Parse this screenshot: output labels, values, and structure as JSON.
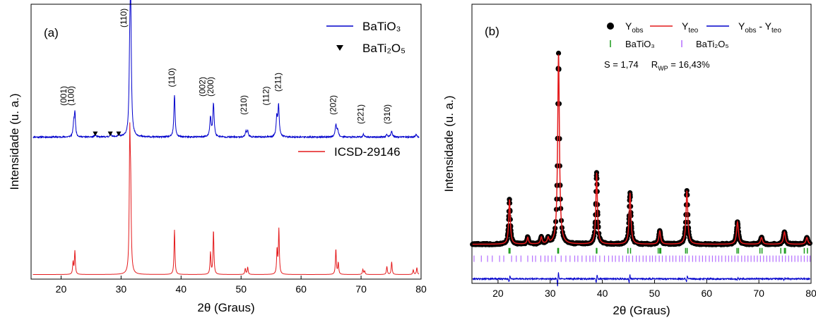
{
  "chart_data": [
    {
      "type": "line",
      "panel_label": "(a)",
      "xlabel": "2θ (Graus)",
      "ylabel": "Intensidade (u. a.)",
      "xlim": [
        15,
        80
      ],
      "xticks": [
        20,
        30,
        40,
        50,
        60,
        70,
        80
      ],
      "ylim": [
        0,
        1.2
      ],
      "yticks_shown": false,
      "grid": false,
      "legend_entries": [
        {
          "label": "BaTiO₃",
          "kind": "line",
          "color": "#0000cc"
        },
        {
          "label": "BaTi₂O₅",
          "kind": "marker",
          "marker": "down-triangle",
          "color": "#000000"
        },
        {
          "label": "ICSD-29146",
          "kind": "line",
          "color": "#e41a1c"
        }
      ],
      "series": [
        {
          "name": "BaTiO₃",
          "color": "#0000cc",
          "baseline": 0.62,
          "noise": 0.006,
          "peaks": [
            {
              "x": 22.1,
              "h": 0.052,
              "w": 0.12
            },
            {
              "x": 22.3,
              "h": 0.102,
              "w": 0.12
            },
            {
              "x": 25.7,
              "h": 0.01,
              "w": 0.15
            },
            {
              "x": 28.3,
              "h": 0.012,
              "w": 0.15
            },
            {
              "x": 29.6,
              "h": 0.008,
              "w": 0.15
            },
            {
              "x": 31.45,
              "h": 0.28,
              "w": 0.13
            },
            {
              "x": 31.6,
              "h": 0.52,
              "w": 0.13
            },
            {
              "x": 38.9,
              "h": 0.184,
              "w": 0.12
            },
            {
              "x": 44.9,
              "h": 0.085,
              "w": 0.13
            },
            {
              "x": 45.4,
              "h": 0.145,
              "w": 0.13
            },
            {
              "x": 50.8,
              "h": 0.024,
              "w": 0.13
            },
            {
              "x": 51.1,
              "h": 0.026,
              "w": 0.13
            },
            {
              "x": 55.95,
              "h": 0.082,
              "w": 0.13
            },
            {
              "x": 56.25,
              "h": 0.135,
              "w": 0.13
            },
            {
              "x": 65.8,
              "h": 0.052,
              "w": 0.14
            },
            {
              "x": 66.1,
              "h": 0.03,
              "w": 0.14
            },
            {
              "x": 70.4,
              "h": 0.012,
              "w": 0.14
            },
            {
              "x": 74.3,
              "h": 0.01,
              "w": 0.14
            },
            {
              "x": 75.1,
              "h": 0.025,
              "w": 0.14
            },
            {
              "x": 79.2,
              "h": 0.012,
              "w": 0.14
            }
          ]
        },
        {
          "name": "ICSD-29146",
          "color": "#e41a1c",
          "baseline": 0.02,
          "noise": 0.0,
          "peaks": [
            {
              "x": 22.0,
              "h": 0.052,
              "w": 0.09
            },
            {
              "x": 22.3,
              "h": 0.102,
              "w": 0.09
            },
            {
              "x": 31.45,
              "h": 0.565,
              "w": 0.1
            },
            {
              "x": 31.6,
              "h": 0.31,
              "w": 0.1
            },
            {
              "x": 38.9,
              "h": 0.195,
              "w": 0.09
            },
            {
              "x": 44.9,
              "h": 0.095,
              "w": 0.09
            },
            {
              "x": 45.4,
              "h": 0.192,
              "w": 0.09
            },
            {
              "x": 50.7,
              "h": 0.026,
              "w": 0.09
            },
            {
              "x": 51.1,
              "h": 0.032,
              "w": 0.09
            },
            {
              "x": 56.0,
              "h": 0.106,
              "w": 0.09
            },
            {
              "x": 56.3,
              "h": 0.196,
              "w": 0.09
            },
            {
              "x": 65.8,
              "h": 0.11,
              "w": 0.09
            },
            {
              "x": 66.2,
              "h": 0.05,
              "w": 0.09
            },
            {
              "x": 70.3,
              "h": 0.022,
              "w": 0.09
            },
            {
              "x": 70.6,
              "h": 0.015,
              "w": 0.09
            },
            {
              "x": 74.3,
              "h": 0.035,
              "w": 0.09
            },
            {
              "x": 75.1,
              "h": 0.055,
              "w": 0.09
            },
            {
              "x": 78.7,
              "h": 0.02,
              "w": 0.09
            },
            {
              "x": 79.3,
              "h": 0.03,
              "w": 0.09
            }
          ]
        }
      ],
      "impurity_markers": {
        "name": "BaTi₂O₅",
        "x": [
          25.7,
          28.2,
          29.6
        ],
        "y": 0.635
      },
      "peak_annotations": [
        {
          "label": "(001)",
          "x": 20.9,
          "y": 0.8
        },
        {
          "label": "(100)",
          "x": 22.1,
          "y": 0.8
        },
        {
          "label": "(110)",
          "x": 30.9,
          "y": 1.14
        },
        {
          "label": "(110)",
          "x": 38.9,
          "y": 0.88
        },
        {
          "label": "(002)",
          "x": 44.0,
          "y": 0.84
        },
        {
          "label": "(200)",
          "x": 45.4,
          "y": 0.84
        },
        {
          "label": "(210)",
          "x": 50.9,
          "y": 0.76
        },
        {
          "label": "(112)",
          "x": 54.6,
          "y": 0.8
        },
        {
          "label": "(211)",
          "x": 56.6,
          "y": 0.86
        },
        {
          "label": "(202)",
          "x": 65.8,
          "y": 0.76
        },
        {
          "label": "(221)",
          "x": 70.4,
          "y": 0.72
        },
        {
          "label": "(310)",
          "x": 74.8,
          "y": 0.72
        }
      ]
    },
    {
      "type": "line",
      "panel_label": "(b)",
      "xlabel": "2θ (Graus)",
      "ylabel": "Intensidade (u. a.)",
      "xlim": [
        15,
        80
      ],
      "xticks": [
        20,
        30,
        40,
        50,
        60,
        70,
        80
      ],
      "ylim": [
        -0.1,
        1.15
      ],
      "yticks_shown": false,
      "grid": false,
      "annotation": "S = 1,74     R_WP = 16,43%",
      "legend_entries": [
        {
          "label": "Yobs",
          "kind": "marker",
          "marker": "circle",
          "color": "#000000"
        },
        {
          "label": "Yteo",
          "kind": "line",
          "color": "#e41a1c"
        },
        {
          "label": "Yobs - Yteo",
          "kind": "line",
          "color": "#0000cc"
        },
        {
          "label": "BaTiO₃",
          "kind": "tick",
          "color": "#1a9a1a"
        },
        {
          "label": "BaTi₂O₅",
          "kind": "tick",
          "color": "#b46eff"
        }
      ],
      "series": [
        {
          "name": "Yobs",
          "color": "#000000",
          "baseline": 0.075,
          "peaks": [
            {
              "x": 22.2,
              "h": 0.2,
              "w": 0.18
            },
            {
              "x": 25.7,
              "h": 0.03,
              "w": 0.18
            },
            {
              "x": 28.3,
              "h": 0.03,
              "w": 0.18
            },
            {
              "x": 29.6,
              "h": 0.025,
              "w": 0.18
            },
            {
              "x": 31.6,
              "h": 0.855,
              "w": 0.2
            },
            {
              "x": 38.9,
              "h": 0.32,
              "w": 0.18
            },
            {
              "x": 45.3,
              "h": 0.23,
              "w": 0.2
            },
            {
              "x": 51.0,
              "h": 0.06,
              "w": 0.2
            },
            {
              "x": 56.2,
              "h": 0.24,
              "w": 0.2
            },
            {
              "x": 65.9,
              "h": 0.1,
              "w": 0.22
            },
            {
              "x": 70.5,
              "h": 0.03,
              "w": 0.22
            },
            {
              "x": 74.9,
              "h": 0.055,
              "w": 0.22
            },
            {
              "x": 79.2,
              "h": 0.03,
              "w": 0.22
            }
          ]
        },
        {
          "name": "Yteo",
          "color": "#e41a1c"
        },
        {
          "name": "Yobs - Yteo",
          "color": "#0000cc",
          "baseline": -0.08,
          "spikes": [
            {
              "x": 22.2,
              "a": 0.03
            },
            {
              "x": 31.5,
              "a": 0.07
            },
            {
              "x": 38.9,
              "a": 0.04
            },
            {
              "x": 45.2,
              "a": 0.04
            },
            {
              "x": 56.2,
              "a": 0.03
            },
            {
              "x": 65.9,
              "a": 0.01
            },
            {
              "x": 74.9,
              "a": 0.01
            }
          ]
        }
      ],
      "reflection_ticks": {
        "BaTiO₃": [
          22.1,
          22.3,
          31.45,
          31.6,
          38.85,
          38.95,
          44.9,
          45.4,
          50.7,
          51.0,
          51.2,
          55.95,
          56.25,
          65.8,
          66.1,
          70.2,
          70.6,
          74.2,
          74.9,
          75.1,
          78.7,
          79.3
        ],
        "BaTi₂O₅": [
          15.4,
          16.8,
          18.0,
          18.9,
          20.3,
          21.1,
          22.6,
          23.5,
          24.4,
          25.7,
          26.6,
          27.2,
          28.2,
          29.0,
          29.6,
          30.3,
          31.0,
          32.1,
          33.0,
          33.8,
          34.7,
          35.3,
          36.1,
          36.9,
          37.6,
          38.2,
          38.7,
          39.5,
          40.4,
          41.2,
          41.9,
          42.5,
          43.2,
          43.9,
          44.6,
          45.1,
          45.8,
          46.5,
          47.1,
          47.8,
          48.4,
          49.1,
          49.6,
          50.2,
          50.9,
          51.5,
          52.2,
          52.9,
          53.5,
          54.1,
          54.8,
          55.3,
          55.9,
          56.6,
          57.3,
          57.9,
          58.6,
          59.2,
          59.8,
          60.5,
          61.1,
          61.7,
          62.3,
          62.9,
          63.6,
          64.2,
          64.8,
          65.4,
          66.0,
          66.7,
          67.3,
          67.9,
          68.5,
          69.1,
          69.7,
          70.3,
          70.9,
          71.5,
          72.1,
          72.7,
          73.3,
          73.9,
          74.5,
          75.1,
          75.7,
          76.3,
          76.9,
          77.5,
          78.1,
          78.7,
          79.3,
          79.8
        ]
      }
    }
  ]
}
